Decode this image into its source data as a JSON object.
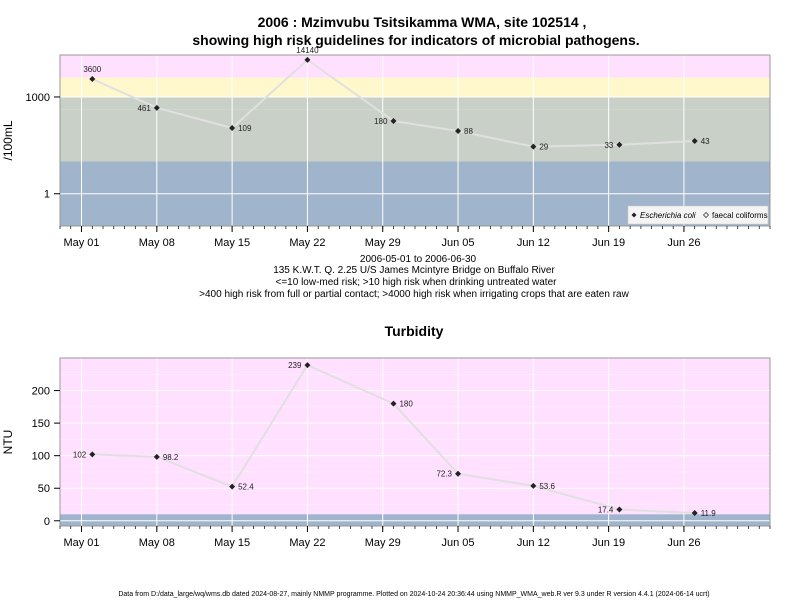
{
  "header": {
    "title_line1": "2006 : Mzimvubu Tsitsikamma WMA, site 102514 ,",
    "title_line2": "showing high risk guidelines for indicators of microbial pathogens."
  },
  "caption": {
    "line1": "2006-05-01 to 2006-06-30",
    "line2": "135 K.W.T. Q. 2.25 U/S James Mcintyre Bridge on Buffalo River",
    "line3": "<=10 low-med risk; >10 high risk when drinking untreated water",
    "line4": ">400 high risk from full or partial contact; >4000 high risk when irrigating crops that are eaten raw"
  },
  "footer": {
    "text": "Data from D:/data_large/wq/wms.db dated 2024-08-27, mainly NMMP programme. Plotted on 2024-10-24 20:36:44 using NMMP_WMA_web.R ver 9.3 under R version 4.4.1 (2024-06-14 ucrt)"
  },
  "colors": {
    "band_magenta": "#ffe0ff",
    "band_yellow": "#fff8cc",
    "band_grey": "#c8d0c8",
    "band_blue": "#a0b4cc",
    "line": "#e0e0e0",
    "point": "#222222"
  },
  "chart_data": [
    {
      "type": "line",
      "title": "",
      "xlabel": "",
      "ylabel": "/100mL",
      "yscale": "log",
      "ylim": [
        0.1,
        20000
      ],
      "yticks": [
        1,
        1000
      ],
      "ytick_labels": [
        "1",
        "1000"
      ],
      "xticks": [
        "2006-05-01",
        "2006-05-08",
        "2006-05-15",
        "2006-05-22",
        "2006-05-29",
        "2006-06-05",
        "2006-06-12",
        "2006-06-19",
        "2006-06-26"
      ],
      "xtick_labels": [
        "May 01",
        "May 08",
        "May 15",
        "May 22",
        "May 29",
        "Jun 05",
        "Jun 12",
        "Jun 19",
        "Jun 26"
      ],
      "xlim": [
        "2006-04-29",
        "2006-07-04"
      ],
      "bands": [
        {
          "from": 4000,
          "to": 20000,
          "color": "#ffe0ff"
        },
        {
          "from": 1000,
          "to": 4000,
          "color": "#fff8cc"
        },
        {
          "from": 10,
          "to": 400,
          "color": "#c8d0c8"
        },
        {
          "from": 400,
          "to": 1000,
          "color": "#c8d0c8"
        },
        {
          "from": 0.1,
          "to": 10,
          "color": "#a0b4cc"
        }
      ],
      "series": [
        {
          "name": "Escherichia coli",
          "x": [
            "2006-05-02",
            "2006-05-08",
            "2006-05-15",
            "2006-05-22",
            "2006-05-30",
            "2006-06-05",
            "2006-06-12",
            "2006-06-20",
            "2006-06-27"
          ],
          "y": [
            3600,
            461,
            109,
            14140,
            180,
            88,
            29,
            33,
            43
          ],
          "labels": [
            "3600",
            "461",
            "109",
            "14140",
            "180",
            "88",
            "29",
            "33",
            "43"
          ]
        }
      ],
      "legend": {
        "position": "bottom-right",
        "entries": [
          "Escherichia coli",
          "faecal coliforms"
        ]
      }
    },
    {
      "type": "line",
      "title": "Turbidity",
      "xlabel": "",
      "ylabel": "NTU",
      "ylim": [
        -8,
        250
      ],
      "yticks": [
        0,
        50,
        100,
        150,
        200
      ],
      "ytick_labels": [
        "0",
        "50",
        "100",
        "150",
        "200"
      ],
      "xticks": [
        "2006-05-01",
        "2006-05-08",
        "2006-05-15",
        "2006-05-22",
        "2006-05-29",
        "2006-06-05",
        "2006-06-12",
        "2006-06-19",
        "2006-06-26"
      ],
      "xtick_labels": [
        "May 01",
        "May 08",
        "May 15",
        "May 22",
        "May 29",
        "Jun 05",
        "Jun 12",
        "Jun 19",
        "Jun 26"
      ],
      "xlim": [
        "2006-04-29",
        "2006-07-04"
      ],
      "bands": [
        {
          "from": 10,
          "to": 250,
          "color": "#ffe0ff"
        },
        {
          "from": -8,
          "to": 10,
          "color": "#a0b4cc"
        }
      ],
      "series": [
        {
          "name": "",
          "x": [
            "2006-05-02",
            "2006-05-08",
            "2006-05-15",
            "2006-05-22",
            "2006-05-30",
            "2006-06-05",
            "2006-06-12",
            "2006-06-20",
            "2006-06-27"
          ],
          "y": [
            102,
            98.2,
            52.4,
            239,
            180,
            72.3,
            53.6,
            17.4,
            11.9
          ],
          "labels": [
            "102",
            "98.2",
            "52.4",
            "239",
            "180",
            "72.3",
            "53.6",
            "17.4",
            "11.9"
          ]
        }
      ]
    }
  ]
}
